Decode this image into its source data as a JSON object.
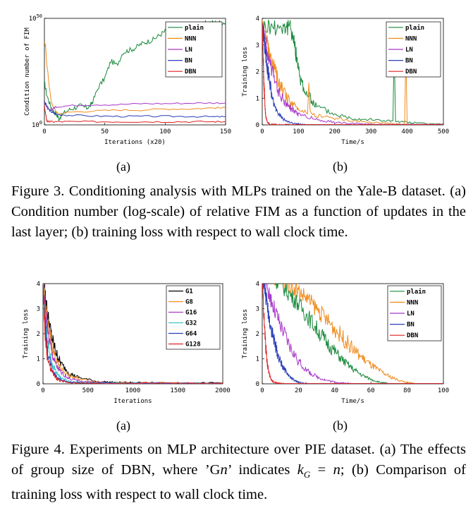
{
  "figure3": {
    "panel_a_label": "(a)",
    "panel_b_label": "(b)",
    "caption": "Figure 3. Conditioning analysis with MLPs trained on the Yale-B dataset. (a) Condition number (log-scale) of relative FIM as a function of updates in the last layer; (b) training loss with respect to wall clock time."
  },
  "figure4": {
    "panel_a_label": "(a)",
    "panel_b_label": "(b)",
    "caption_html": "Figure 4. Experiments on MLP architecture over PIE dataset. (a) The effects of group size of DBN, where ’G<i>n</i>’ indicates <i>k</i><sub style=\"font-size:13px\"><i>G</i></sub> = <i>n</i>; (b) Comparison of training loss with respect to wall clock time."
  },
  "colors": {
    "plain": "#1a8a3c",
    "NNN": "#f08c1e",
    "LN": "#a838c8",
    "BN": "#2a3fb8",
    "DBN": "#e02020",
    "G1": "#000000",
    "G8": "#f08c1e",
    "G16": "#a838c8",
    "G32": "#36c9c1",
    "G64": "#2a3fb8",
    "G128": "#e02020"
  },
  "chart_data": [
    {
      "id": "fig3a",
      "type": "line",
      "xlabel": "Iterations (x20)",
      "ylabel": "Condition number of FIM",
      "xticks": [
        "0",
        "50",
        "100",
        "150"
      ],
      "yticks": [
        "10^0",
        "10^50"
      ],
      "xlim": [
        0,
        150
      ],
      "ylim": [
        0,
        50
      ],
      "yscale": "log10-exponent",
      "legend": [
        "plain",
        "NNN",
        "LN",
        "BN",
        "DBN"
      ],
      "legend_position": "top-right",
      "series": [
        {
          "name": "plain",
          "x": [
            0,
            2,
            5,
            8,
            10,
            12,
            15,
            20,
            25,
            30,
            35,
            38,
            40,
            45,
            50,
            55,
            60,
            65,
            70,
            75,
            80,
            85,
            90,
            95,
            100,
            105,
            110,
            115,
            120,
            125,
            130,
            135,
            140,
            145,
            150
          ],
          "y": [
            20,
            14,
            9,
            6,
            5,
            3,
            5,
            7,
            8,
            9,
            8,
            9,
            11,
            18,
            22,
            30,
            28,
            34,
            35,
            36,
            38,
            39,
            40,
            42,
            44,
            45,
            45,
            46,
            46,
            47,
            47,
            48,
            48,
            48,
            48
          ]
        },
        {
          "name": "NNN",
          "x": [
            0,
            1,
            2,
            3,
            4,
            5,
            6,
            8,
            10,
            12,
            20,
            40,
            60,
            80,
            100,
            120,
            140,
            150
          ],
          "y": [
            39,
            37,
            28,
            24,
            18,
            14,
            10,
            8,
            6,
            5,
            6,
            6.5,
            7,
            7,
            7.5,
            7.5,
            8,
            8
          ]
        },
        {
          "name": "LN",
          "x": [
            0,
            2,
            4,
            6,
            8,
            10,
            20,
            40,
            60,
            80,
            100,
            120,
            140,
            150
          ],
          "y": [
            11,
            8,
            7,
            7,
            8,
            8.5,
            9,
            9.5,
            9.5,
            10,
            10,
            10.2,
            10.3,
            10.3
          ]
        },
        {
          "name": "BN",
          "x": [
            0,
            2,
            4,
            6,
            8,
            10,
            20,
            40,
            60,
            80,
            100,
            120,
            140,
            150
          ],
          "y": [
            11,
            9,
            7,
            6,
            5.5,
            5,
            4.5,
            4.2,
            4,
            4,
            4,
            4,
            3.8,
            3.8
          ]
        },
        {
          "name": "DBN",
          "x": [
            0,
            1,
            2,
            3,
            5,
            10,
            20,
            40,
            60,
            80,
            100,
            120,
            140,
            150
          ],
          "y": [
            9,
            5,
            2,
            1.5,
            1.5,
            1.5,
            1.5,
            1.5,
            1.5,
            1.5,
            1.5,
            1.5,
            1.5,
            1.5
          ]
        }
      ]
    },
    {
      "id": "fig3b",
      "type": "line",
      "xlabel": "Time/s",
      "ylabel": "Training loss",
      "xticks": [
        "0",
        "100",
        "200",
        "300",
        "400",
        "500"
      ],
      "yticks": [
        "0",
        "1",
        "2",
        "3",
        "4"
      ],
      "xlim": [
        0,
        500
      ],
      "ylim": [
        0,
        4
      ],
      "legend": [
        "plain",
        "NNN",
        "LN",
        "BN",
        "DBN"
      ],
      "legend_position": "top-right",
      "series": [
        {
          "name": "plain",
          "x": [
            0,
            30,
            60,
            80,
            90,
            100,
            120,
            150,
            200,
            250,
            300,
            350,
            400,
            450,
            500
          ],
          "y": [
            3.7,
            3.7,
            3.7,
            3.6,
            3.0,
            2.0,
            1.2,
            0.7,
            0.4,
            0.25,
            0.2,
            0.15,
            0.1,
            0.05,
            0.02
          ]
        },
        {
          "name": "NNN",
          "x": [
            0,
            10,
            20,
            40,
            60,
            80,
            100,
            150,
            200,
            250,
            300,
            350,
            400
          ],
          "y": [
            3.7,
            3.3,
            2.6,
            1.8,
            1.2,
            0.8,
            0.6,
            0.35,
            0.25,
            0.15,
            0.1,
            0.05,
            0.02
          ]
        },
        {
          "name": "LN",
          "x": [
            0,
            10,
            20,
            40,
            60,
            80,
            100,
            150,
            200,
            250,
            300
          ],
          "y": [
            3.7,
            3.0,
            2.3,
            1.4,
            0.9,
            0.6,
            0.4,
            0.2,
            0.1,
            0.05,
            0.02
          ]
        },
        {
          "name": "BN",
          "x": [
            0,
            5,
            10,
            20,
            30,
            40,
            60,
            80,
            100,
            120
          ],
          "y": [
            3.7,
            3.2,
            2.6,
            1.6,
            0.9,
            0.5,
            0.2,
            0.08,
            0.03,
            0.01
          ]
        },
        {
          "name": "DBN",
          "x": [
            0,
            2,
            4,
            6,
            8,
            10,
            15,
            20,
            30,
            40,
            60,
            100
          ],
          "y": [
            3.7,
            3.0,
            1.8,
            1.2,
            0.6,
            0.3,
            0.08,
            0.03,
            0.02,
            0.01,
            0.01,
            0.01
          ]
        }
      ]
    },
    {
      "id": "fig4a",
      "type": "line",
      "xlabel": "Iterations",
      "ylabel": "Training loss",
      "xticks": [
        "0",
        "500",
        "1000",
        "1500",
        "2000"
      ],
      "yticks": [
        "0",
        "1",
        "2",
        "3",
        "4"
      ],
      "xlim": [
        0,
        2000
      ],
      "ylim": [
        0,
        4
      ],
      "legend": [
        "G1",
        "G8",
        "G16",
        "G32",
        "G64",
        "G128"
      ],
      "legend_position": "top-right",
      "series": [
        {
          "name": "G1",
          "x": [
            0,
            20,
            50,
            100,
            150,
            200,
            300,
            400,
            600,
            800,
            1000,
            1500,
            2000
          ],
          "y": [
            4.2,
            3.7,
            2.8,
            1.8,
            1.2,
            0.8,
            0.4,
            0.25,
            0.1,
            0.06,
            0.05,
            0.04,
            0.03
          ]
        },
        {
          "name": "G8",
          "x": [
            0,
            20,
            50,
            100,
            150,
            200,
            300,
            400,
            600,
            800,
            1000,
            1500,
            2000
          ],
          "y": [
            4.2,
            3.4,
            2.4,
            1.5,
            0.9,
            0.6,
            0.3,
            0.2,
            0.08,
            0.05,
            0.04,
            0.03,
            0.03
          ]
        },
        {
          "name": "G16",
          "x": [
            0,
            20,
            50,
            100,
            150,
            200,
            300,
            400,
            600,
            800,
            1000,
            1500,
            2000
          ],
          "y": [
            4.2,
            3.2,
            2.1,
            1.2,
            0.7,
            0.45,
            0.2,
            0.12,
            0.06,
            0.04,
            0.03,
            0.03,
            0.02
          ]
        },
        {
          "name": "G32",
          "x": [
            0,
            20,
            50,
            100,
            150,
            200,
            300,
            400,
            600,
            1000,
            2000
          ],
          "y": [
            4.2,
            2.8,
            1.6,
            0.8,
            0.45,
            0.25,
            0.1,
            0.06,
            0.04,
            0.03,
            0.02
          ]
        },
        {
          "name": "G64",
          "x": [
            0,
            20,
            50,
            100,
            150,
            200,
            300,
            400,
            600,
            1000,
            2000
          ],
          "y": [
            4.2,
            2.5,
            1.3,
            0.6,
            0.3,
            0.15,
            0.06,
            0.04,
            0.03,
            0.02,
            0.02
          ]
        },
        {
          "name": "G128",
          "x": [
            0,
            20,
            50,
            100,
            150,
            200,
            300,
            400,
            600,
            1000,
            2000
          ],
          "y": [
            4.2,
            2.2,
            1.0,
            0.45,
            0.2,
            0.1,
            0.05,
            0.03,
            0.02,
            0.02,
            0.02
          ]
        }
      ]
    },
    {
      "id": "fig4b",
      "type": "line",
      "xlabel": "Time/s",
      "ylabel": "Training loss",
      "xticks": [
        "0",
        "20",
        "40",
        "60",
        "80",
        "100"
      ],
      "yticks": [
        "0",
        "1",
        "2",
        "3",
        "4"
      ],
      "xlim": [
        0,
        100
      ],
      "ylim": [
        0,
        4
      ],
      "legend": [
        "plain",
        "NNN",
        "LN",
        "BN",
        "DBN"
      ],
      "legend_position": "top-right",
      "series": [
        {
          "name": "plain",
          "x": [
            0,
            5,
            10,
            15,
            20,
            25,
            30,
            35,
            40,
            45,
            50,
            55,
            60,
            65,
            70
          ],
          "y": [
            4.3,
            4.3,
            4.0,
            3.6,
            3.2,
            2.7,
            2.2,
            1.7,
            1.3,
            0.9,
            0.6,
            0.35,
            0.18,
            0.06,
            0.01
          ]
        },
        {
          "name": "NNN",
          "x": [
            0,
            5,
            10,
            15,
            20,
            25,
            30,
            35,
            40,
            45,
            50,
            55,
            60,
            65,
            70,
            75,
            80,
            85
          ],
          "y": [
            4.3,
            4.3,
            4.25,
            4.0,
            3.7,
            3.4,
            3.0,
            2.6,
            2.2,
            1.8,
            1.4,
            1.05,
            0.75,
            0.5,
            0.3,
            0.15,
            0.05,
            0.01
          ]
        },
        {
          "name": "LN",
          "x": [
            0,
            3,
            6,
            10,
            15,
            20,
            25,
            30,
            35,
            40,
            45,
            50
          ],
          "y": [
            4.3,
            3.8,
            3.1,
            2.3,
            1.5,
            0.9,
            0.5,
            0.28,
            0.15,
            0.07,
            0.03,
            0.01
          ]
        },
        {
          "name": "BN",
          "x": [
            0,
            2,
            4,
            6,
            8,
            10,
            12,
            15,
            18,
            20,
            25
          ],
          "y": [
            4.3,
            3.5,
            2.6,
            1.9,
            1.3,
            0.9,
            0.6,
            0.3,
            0.12,
            0.06,
            0.01
          ]
        },
        {
          "name": "DBN",
          "x": [
            0,
            1,
            2,
            3,
            4,
            5,
            6,
            8,
            10,
            12
          ],
          "y": [
            4.3,
            2.6,
            1.4,
            0.7,
            0.35,
            0.18,
            0.08,
            0.03,
            0.01,
            0.01
          ]
        }
      ]
    }
  ]
}
